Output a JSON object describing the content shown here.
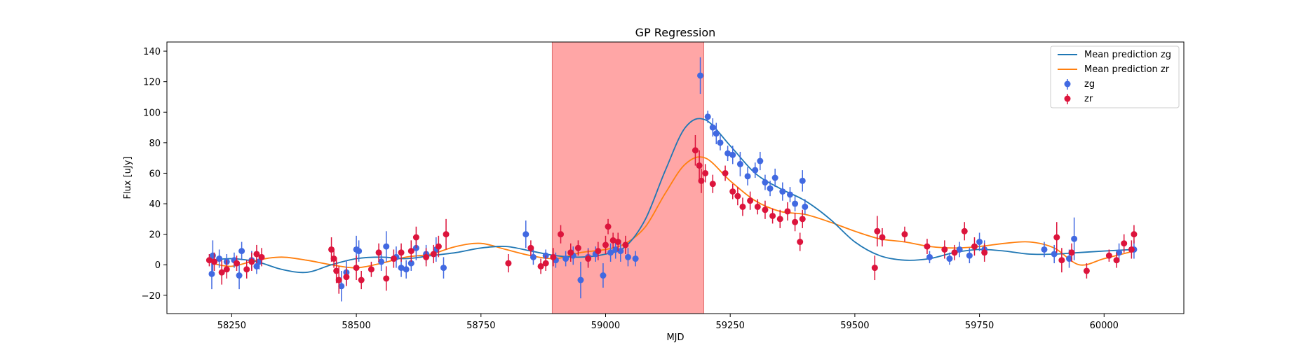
{
  "chart_data": {
    "type": "scatter",
    "title": "GP Regression",
    "xlabel": "MJD",
    "ylabel": "Flux [uJy]",
    "xlim": [
      58120,
      60160
    ],
    "ylim": [
      -32,
      146
    ],
    "xticks": [
      58250,
      58500,
      58750,
      59000,
      59250,
      59500,
      59750,
      60000
    ],
    "yticks": [
      -20,
      0,
      20,
      40,
      60,
      80,
      100,
      120,
      140
    ],
    "grid": false,
    "legend_position": "top-right",
    "shaded_region": {
      "x0": 58893,
      "x1": 59197,
      "color": "#ffa6a6"
    },
    "colors": {
      "zg": "#4169e1",
      "zr": "#dc143c",
      "mean_zg": "#1f77b4",
      "mean_zr": "#ff7f0e"
    },
    "legend": [
      "Mean prediction zg",
      "Mean prediction zr",
      "zg",
      "zr"
    ],
    "mean_zg": {
      "name": "Mean prediction zg",
      "x": [
        58210,
        58250,
        58300,
        58350,
        58400,
        58450,
        58500,
        58550,
        58600,
        58650,
        58700,
        58750,
        58800,
        58850,
        58900,
        58950,
        59000,
        59040,
        59080,
        59120,
        59160,
        59200,
        59250,
        59300,
        59350,
        59400,
        59450,
        59500,
        59550,
        59600,
        59650,
        59700,
        59750,
        59800,
        59850,
        59900,
        59950,
        60000,
        60060
      ],
      "y": [
        3,
        4,
        2,
        -3,
        -5,
        0,
        4,
        5,
        4,
        6,
        8,
        11,
        12,
        9,
        6,
        5,
        7,
        12,
        30,
        62,
        90,
        95,
        78,
        60,
        50,
        42,
        30,
        15,
        6,
        3,
        4,
        8,
        10,
        9,
        7,
        7,
        8,
        9,
        10
      ]
    },
    "mean_zr": {
      "name": "Mean prediction zr",
      "x": [
        58210,
        58250,
        58300,
        58350,
        58400,
        58450,
        58500,
        58550,
        58600,
        58650,
        58700,
        58750,
        58800,
        58850,
        58900,
        58950,
        59000,
        59040,
        59080,
        59120,
        59160,
        59200,
        59250,
        59300,
        59350,
        59400,
        59450,
        59500,
        59550,
        59600,
        59650,
        59700,
        59750,
        59800,
        59850,
        59900,
        59950,
        60000,
        60060
      ],
      "y": [
        1,
        -1,
        3,
        5,
        3,
        0,
        -2,
        1,
        5,
        7,
        12,
        14,
        10,
        6,
        4,
        8,
        10,
        14,
        25,
        47,
        66,
        70,
        55,
        42,
        35,
        33,
        28,
        22,
        17,
        15,
        12,
        11,
        12,
        14,
        15,
        11,
        0,
        4,
        9
      ]
    },
    "zg": {
      "name": "zg",
      "points": [
        [
          58210,
          -6,
          10
        ],
        [
          58212,
          6,
          10
        ],
        [
          58225,
          4,
          6
        ],
        [
          58240,
          2,
          5
        ],
        [
          58255,
          3,
          5
        ],
        [
          58265,
          -7,
          9
        ],
        [
          58270,
          9,
          6
        ],
        [
          58290,
          3,
          6
        ],
        [
          58300,
          -1,
          5
        ],
        [
          58305,
          2,
          5
        ],
        [
          58470,
          -14,
          10
        ],
        [
          58480,
          -5,
          8
        ],
        [
          58500,
          10,
          9
        ],
        [
          58505,
          9,
          7
        ],
        [
          58550,
          2,
          6
        ],
        [
          58560,
          12,
          10
        ],
        [
          58580,
          5,
          7
        ],
        [
          58590,
          -2,
          6
        ],
        [
          58600,
          -3,
          6
        ],
        [
          58610,
          1,
          5
        ],
        [
          58620,
          11,
          8
        ],
        [
          58640,
          7,
          6
        ],
        [
          58660,
          10,
          8
        ],
        [
          58675,
          -2,
          7
        ],
        [
          58840,
          20,
          9
        ],
        [
          58855,
          5,
          5
        ],
        [
          58880,
          6,
          4
        ],
        [
          58900,
          3,
          5
        ],
        [
          58920,
          4,
          5
        ],
        [
          58935,
          6,
          6
        ],
        [
          58950,
          -10,
          12
        ],
        [
          58965,
          5,
          6
        ],
        [
          58980,
          7,
          5
        ],
        [
          58995,
          -7,
          8
        ],
        [
          59010,
          8,
          6
        ],
        [
          59020,
          10,
          6
        ],
        [
          59030,
          9,
          7
        ],
        [
          59045,
          5,
          6
        ],
        [
          59060,
          4,
          5
        ],
        [
          59190,
          124,
          12
        ],
        [
          59205,
          97,
          4
        ],
        [
          59215,
          90,
          6
        ],
        [
          59222,
          86,
          7
        ],
        [
          59230,
          80,
          5
        ],
        [
          59245,
          73,
          5
        ],
        [
          59255,
          72,
          6
        ],
        [
          59270,
          66,
          8
        ],
        [
          59285,
          58,
          6
        ],
        [
          59300,
          62,
          5
        ],
        [
          59310,
          68,
          6
        ],
        [
          59320,
          54,
          5
        ],
        [
          59330,
          50,
          5
        ],
        [
          59340,
          57,
          6
        ],
        [
          59355,
          48,
          6
        ],
        [
          59370,
          46,
          5
        ],
        [
          59380,
          40,
          5
        ],
        [
          59395,
          55,
          7
        ],
        [
          59400,
          38,
          5
        ],
        [
          59650,
          5,
          4
        ],
        [
          59690,
          4,
          4
        ],
        [
          59710,
          10,
          5
        ],
        [
          59730,
          6,
          5
        ],
        [
          59750,
          15,
          6
        ],
        [
          59760,
          10,
          6
        ],
        [
          59880,
          10,
          5
        ],
        [
          59900,
          7,
          6
        ],
        [
          59930,
          4,
          6
        ],
        [
          59940,
          17,
          14
        ],
        [
          60030,
          8,
          6
        ],
        [
          60060,
          10,
          6
        ]
      ]
    },
    "zr": {
      "name": "zr",
      "points": [
        [
          58205,
          3,
          4
        ],
        [
          58215,
          2,
          6
        ],
        [
          58230,
          -5,
          8
        ],
        [
          58240,
          -3,
          6
        ],
        [
          58260,
          1,
          5
        ],
        [
          58280,
          -3,
          6
        ],
        [
          58290,
          2,
          6
        ],
        [
          58300,
          7,
          6
        ],
        [
          58310,
          5,
          6
        ],
        [
          58450,
          10,
          8
        ],
        [
          58455,
          4,
          6
        ],
        [
          58460,
          -4,
          8
        ],
        [
          58465,
          -10,
          9
        ],
        [
          58480,
          -8,
          6
        ],
        [
          58500,
          -2,
          8
        ],
        [
          58510,
          -10,
          6
        ],
        [
          58530,
          -3,
          5
        ],
        [
          58545,
          8,
          6
        ],
        [
          58560,
          -9,
          8
        ],
        [
          58575,
          4,
          6
        ],
        [
          58590,
          8,
          6
        ],
        [
          58610,
          9,
          7
        ],
        [
          58620,
          18,
          7
        ],
        [
          58640,
          5,
          6
        ],
        [
          58655,
          7,
          6
        ],
        [
          58665,
          12,
          7
        ],
        [
          58680,
          20,
          10
        ],
        [
          58805,
          1,
          6
        ],
        [
          58850,
          11,
          5
        ],
        [
          58870,
          -1,
          5
        ],
        [
          58880,
          1,
          5
        ],
        [
          58895,
          5,
          6
        ],
        [
          58910,
          20,
          6
        ],
        [
          58930,
          8,
          6
        ],
        [
          58945,
          11,
          5
        ],
        [
          58965,
          4,
          6
        ],
        [
          58985,
          9,
          6
        ],
        [
          59000,
          13,
          6
        ],
        [
          59005,
          25,
          5
        ],
        [
          59015,
          16,
          5
        ],
        [
          59025,
          15,
          6
        ],
        [
          59040,
          13,
          6
        ],
        [
          59180,
          75,
          10
        ],
        [
          59188,
          65,
          10
        ],
        [
          59192,
          55,
          8
        ],
        [
          59200,
          60,
          6
        ],
        [
          59215,
          53,
          6
        ],
        [
          59240,
          60,
          5
        ],
        [
          59255,
          48,
          5
        ],
        [
          59265,
          45,
          6
        ],
        [
          59275,
          38,
          6
        ],
        [
          59290,
          42,
          6
        ],
        [
          59305,
          38,
          5
        ],
        [
          59320,
          36,
          6
        ],
        [
          59335,
          32,
          5
        ],
        [
          59350,
          30,
          6
        ],
        [
          59365,
          35,
          6
        ],
        [
          59380,
          28,
          6
        ],
        [
          59390,
          15,
          6
        ],
        [
          59395,
          30,
          6
        ],
        [
          59540,
          -2,
          8
        ],
        [
          59545,
          22,
          10
        ],
        [
          59555,
          18,
          6
        ],
        [
          59600,
          20,
          5
        ],
        [
          59645,
          12,
          5
        ],
        [
          59680,
          10,
          6
        ],
        [
          59700,
          8,
          5
        ],
        [
          59720,
          22,
          6
        ],
        [
          59740,
          12,
          6
        ],
        [
          59760,
          8,
          6
        ],
        [
          59905,
          18,
          10
        ],
        [
          59915,
          3,
          8
        ],
        [
          59935,
          8,
          6
        ],
        [
          59965,
          -4,
          5
        ],
        [
          60010,
          6,
          4
        ],
        [
          60025,
          3,
          5
        ],
        [
          60040,
          14,
          6
        ],
        [
          60055,
          10,
          6
        ],
        [
          60060,
          20,
          6
        ]
      ]
    }
  }
}
